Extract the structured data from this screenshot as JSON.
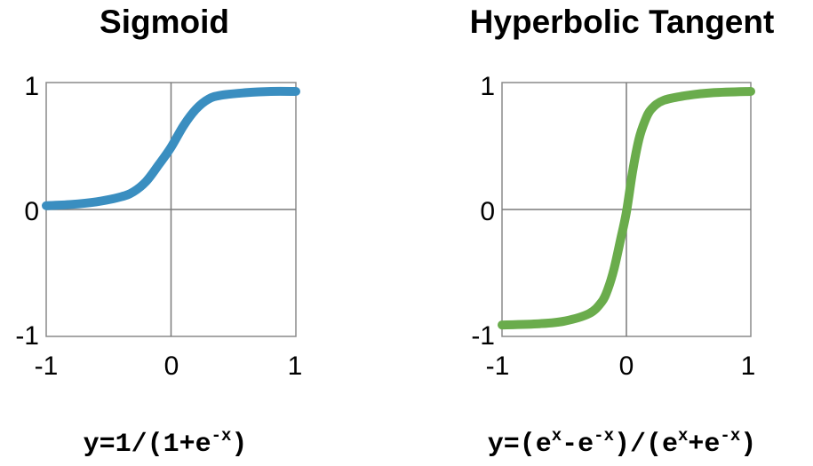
{
  "chart_data": [
    {
      "type": "line",
      "title": "Sigmoid",
      "formula": {
        "prefix": "y=1/(1+e",
        "sup": "-x",
        "suffix": ")"
      },
      "xlim": [
        -1,
        1
      ],
      "ylim": [
        -1,
        1
      ],
      "x_ticks": [
        "-1",
        "0",
        "1"
      ],
      "y_ticks": [
        "-1",
        "0",
        "1"
      ],
      "grid": true,
      "color": "#3a8ec0",
      "series": [
        {
          "x": [
            -1,
            -0.8,
            -0.6,
            -0.4,
            -0.3,
            -0.2,
            -0.1,
            0,
            0.1,
            0.2,
            0.3,
            0.4,
            0.6,
            0.8,
            1
          ],
          "y": [
            0.03,
            0.04,
            0.06,
            0.1,
            0.14,
            0.22,
            0.35,
            0.49,
            0.66,
            0.79,
            0.87,
            0.9,
            0.92,
            0.93,
            0.93
          ]
        }
      ]
    },
    {
      "type": "line",
      "title": "Hyperbolic Tangent",
      "formula": {
        "prefix": "y=(e",
        "sup1": "x",
        "mid1": "-e",
        "sup2": "-x",
        "mid2": ")/(e",
        "sup3": "x",
        "mid3": "+e",
        "sup4": "-x",
        "suffix": ")"
      },
      "xlim": [
        -1,
        1
      ],
      "ylim": [
        -1,
        1
      ],
      "x_ticks": [
        "-1",
        "0",
        "1"
      ],
      "y_ticks": [
        "-1",
        "0",
        "1"
      ],
      "grid": true,
      "color": "#6aac4c",
      "series": [
        {
          "x": [
            -1,
            -0.7,
            -0.5,
            -0.3,
            -0.2,
            -0.15,
            -0.1,
            -0.05,
            0,
            0.05,
            0.1,
            0.15,
            0.2,
            0.3,
            0.5,
            0.7,
            1
          ],
          "y": [
            -0.91,
            -0.9,
            -0.88,
            -0.82,
            -0.73,
            -0.63,
            -0.47,
            -0.25,
            -0.02,
            0.3,
            0.55,
            0.7,
            0.79,
            0.86,
            0.9,
            0.92,
            0.93
          ]
        }
      ]
    }
  ]
}
